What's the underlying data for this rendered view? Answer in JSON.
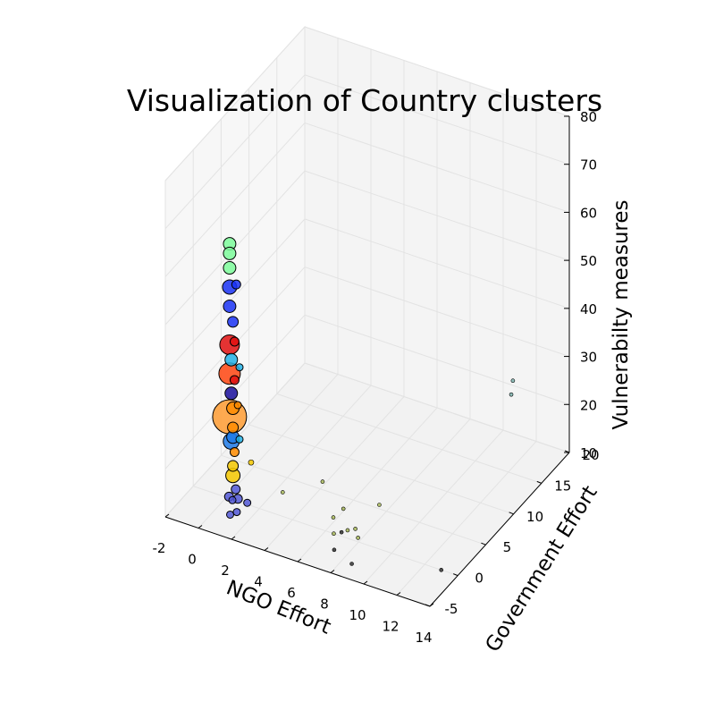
{
  "chart_data": {
    "type": "scatter3d",
    "title": "Visualization of Country clusters",
    "xlabel": "NGO Effort",
    "ylabel": "Government Effort",
    "zlabel": "Vulnerabilty measures",
    "xlim": [
      -2,
      14
    ],
    "ylim": [
      -5,
      20
    ],
    "zlim": [
      10,
      80
    ],
    "xticks": [
      "-2",
      "0",
      "2",
      "4",
      "6",
      "8",
      "10",
      "12",
      "14"
    ],
    "yticks": [
      "-5",
      "0",
      "5",
      "10",
      "15",
      "20"
    ],
    "zticks": [
      "10",
      "20",
      "30",
      "40",
      "50",
      "60",
      "70",
      "80"
    ],
    "grid": true,
    "points": [
      {
        "x": 0.2,
        "y": 0.0,
        "z": 63,
        "size": 14,
        "color": "#7dfc9a"
      },
      {
        "x": 0.2,
        "y": 0.0,
        "z": 61,
        "size": 14,
        "color": "#7dfc9a"
      },
      {
        "x": 0.2,
        "y": 0.0,
        "z": 58,
        "size": 14,
        "color": "#7dfc9a"
      },
      {
        "x": 0.2,
        "y": 0.0,
        "z": 54,
        "size": 16,
        "color": "#1a33f5"
      },
      {
        "x": 0.6,
        "y": 0.0,
        "z": 55,
        "size": 10,
        "color": "#1a33f5"
      },
      {
        "x": 0.2,
        "y": 0.0,
        "z": 50,
        "size": 14,
        "color": "#1a33f5"
      },
      {
        "x": 0.4,
        "y": 0.0,
        "z": 47,
        "size": 12,
        "color": "#1a33f5"
      },
      {
        "x": 0.2,
        "y": 0.0,
        "z": 42,
        "size": 22,
        "color": "#e01010"
      },
      {
        "x": 0.5,
        "y": 0.0,
        "z": 43,
        "size": 10,
        "color": "#e01010"
      },
      {
        "x": 0.3,
        "y": 0.0,
        "z": 39,
        "size": 14,
        "color": "#23b2e6"
      },
      {
        "x": 0.8,
        "y": 0.0,
        "z": 38,
        "size": 8,
        "color": "#23b2e6"
      },
      {
        "x": 0.2,
        "y": 0.0,
        "z": 36,
        "size": 24,
        "color": "#ff4510"
      },
      {
        "x": 0.5,
        "y": 0.0,
        "z": 35,
        "size": 10,
        "color": "#e01010"
      },
      {
        "x": 0.3,
        "y": 0.0,
        "z": 32,
        "size": 14,
        "color": "#1a0f9c"
      },
      {
        "x": 0.2,
        "y": 0.0,
        "z": 27,
        "size": 38,
        "color": "#ff9c33"
      },
      {
        "x": 0.4,
        "y": 0.0,
        "z": 29,
        "size": 14,
        "color": "#ff8c00"
      },
      {
        "x": 0.7,
        "y": 0.0,
        "z": 30,
        "size": 8,
        "color": "#ff8c00"
      },
      {
        "x": 0.4,
        "y": 0.0,
        "z": 25,
        "size": 12,
        "color": "#ff8c00"
      },
      {
        "x": 0.3,
        "y": 0.0,
        "z": 22,
        "size": 18,
        "color": "#1e7ae6"
      },
      {
        "x": 0.4,
        "y": 0.0,
        "z": 23,
        "size": 14,
        "color": "#1e7ae6"
      },
      {
        "x": 0.8,
        "y": 0.0,
        "z": 23,
        "size": 8,
        "color": "#23b2e6"
      },
      {
        "x": 0.5,
        "y": 0.0,
        "z": 20,
        "size": 10,
        "color": "#ff8c00"
      },
      {
        "x": 0.4,
        "y": 0.0,
        "z": 17,
        "size": 12,
        "color": "#f5c800"
      },
      {
        "x": 0.4,
        "y": 0.0,
        "z": 15,
        "size": 16,
        "color": "#f5c800"
      },
      {
        "x": 1.5,
        "y": 0.0,
        "z": 19,
        "size": 6,
        "color": "#f5c800"
      },
      {
        "x": 0.3,
        "y": -0.4,
        "z": 11,
        "size": 10,
        "color": "#5258d6"
      },
      {
        "x": 0.3,
        "y": 0.8,
        "z": 11,
        "size": 10,
        "color": "#5258d6"
      },
      {
        "x": 0.6,
        "y": 0.3,
        "z": 10,
        "size": 10,
        "color": "#5258d6"
      },
      {
        "x": 0.2,
        "y": 0.5,
        "z": 9,
        "size": 8,
        "color": "#5258d6"
      },
      {
        "x": 0.3,
        "y": -0.2,
        "z": 7,
        "size": 8,
        "color": "#5258d6"
      },
      {
        "x": 0.5,
        "y": 0.4,
        "z": 7,
        "size": 8,
        "color": "#5258d6"
      },
      {
        "x": 1.2,
        "y": 0.2,
        "z": 10,
        "size": 8,
        "color": "#5258d6"
      },
      {
        "x": 2.4,
        "y": 3.0,
        "z": 10,
        "size": 4,
        "color": "#a8b85a"
      },
      {
        "x": 3.8,
        "y": 6.0,
        "z": 10,
        "size": 4,
        "color": "#a8b85a"
      },
      {
        "x": 5.8,
        "y": 2.0,
        "z": 10,
        "size": 4,
        "color": "#a8b85a"
      },
      {
        "x": 5.9,
        "y": 3.5,
        "z": 10,
        "size": 4,
        "color": "#a8b85a"
      },
      {
        "x": 6.5,
        "y": 0.0,
        "z": 10,
        "size": 4,
        "color": "#a8b85a"
      },
      {
        "x": 6.8,
        "y": 0.5,
        "z": 10,
        "size": 4,
        "color": "#333333"
      },
      {
        "x": 7.0,
        "y": 1.0,
        "z": 10,
        "size": 4,
        "color": "#a8b85a"
      },
      {
        "x": 7.3,
        "y": 1.5,
        "z": 10,
        "size": 4,
        "color": "#a8b85a"
      },
      {
        "x": 7.4,
        "y": 5.5,
        "z": 10,
        "size": 4,
        "color": "#a8b85a"
      },
      {
        "x": 7.8,
        "y": 0.5,
        "z": 10,
        "size": 4,
        "color": "#a8b85a"
      },
      {
        "x": 7.2,
        "y": -2.0,
        "z": 10,
        "size": 4,
        "color": "#333333"
      },
      {
        "x": 8.6,
        "y": -3.0,
        "z": 10,
        "size": 4,
        "color": "#333333"
      },
      {
        "x": 13.0,
        "y": 0.0,
        "z": 10,
        "size": 4,
        "color": "#333333"
      },
      {
        "x": 11.6,
        "y": 17.0,
        "z": 26,
        "size": 4,
        "color": "#7fb5b0"
      },
      {
        "x": 11.5,
        "y": 17.0,
        "z": 23,
        "size": 4,
        "color": "#7fb5b0"
      }
    ]
  }
}
